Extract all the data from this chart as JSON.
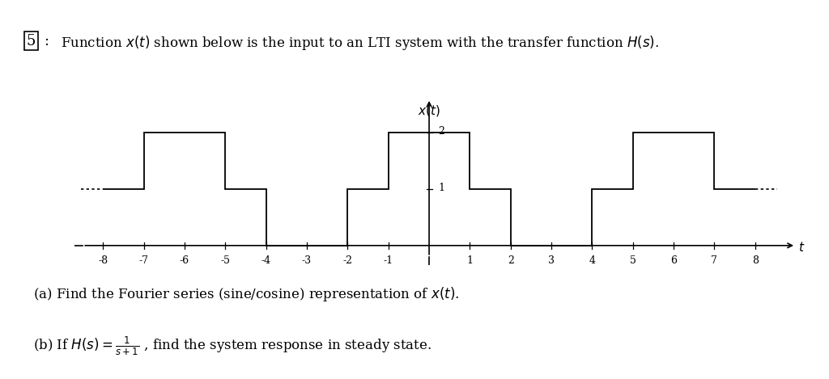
{
  "part_a": "(a) Find the Fourier series (sine/cosine) representation of $x(t)$.",
  "part_b": "(b) If $H(s) = \\frac{1}{s+1}$ , find the system response in steady state.",
  "waveform": [
    [
      -8,
      1
    ],
    [
      -7,
      1
    ],
    [
      -7,
      2
    ],
    [
      -5,
      2
    ],
    [
      -5,
      1
    ],
    [
      -4,
      1
    ],
    [
      -4,
      0
    ],
    [
      -2,
      0
    ],
    [
      -2,
      1
    ],
    [
      -1,
      1
    ],
    [
      -1,
      2
    ],
    [
      1,
      2
    ],
    [
      1,
      1
    ],
    [
      2,
      1
    ],
    [
      2,
      0
    ],
    [
      4,
      0
    ],
    [
      4,
      1
    ],
    [
      5,
      1
    ],
    [
      5,
      2
    ],
    [
      7,
      2
    ],
    [
      7,
      1
    ],
    [
      8,
      1
    ]
  ],
  "dot_left_y": 1,
  "dot_right_y": 1,
  "xlim": [
    -8.7,
    9.0
  ],
  "ylim": [
    -0.35,
    2.6
  ],
  "xticks": [
    -8,
    -7,
    -6,
    -5,
    -4,
    -3,
    -2,
    -1,
    1,
    2,
    3,
    4,
    5,
    6,
    7,
    8
  ],
  "background": "#ffffff",
  "line_color": "#000000"
}
